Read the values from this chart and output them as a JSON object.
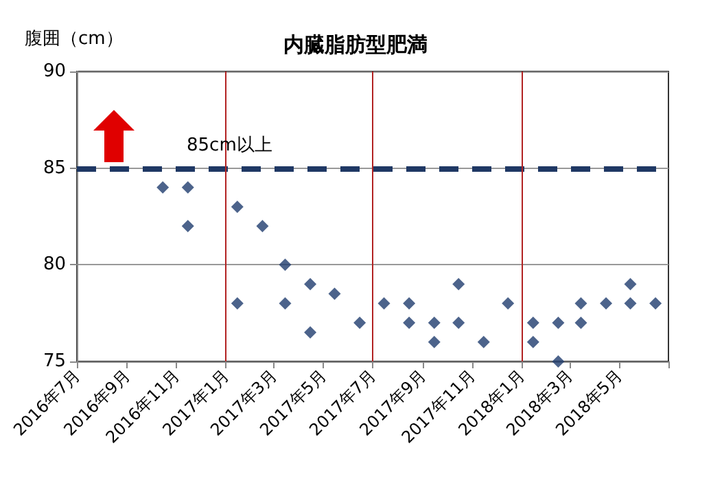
{
  "chart_data": {
    "type": "scatter",
    "title": "内臓脂肪型肥満",
    "ylabel": "腹囲（cm）",
    "x": [
      "2016-10-15",
      "2016-11-15",
      "2016-11-15",
      "2017-01-15",
      "2017-01-15",
      "2017-02-15",
      "2017-03-15",
      "2017-03-15",
      "2017-04-15",
      "2017-04-15",
      "2017-05-15",
      "2017-06-15",
      "2017-07-15",
      "2017-08-15",
      "2017-08-15",
      "2017-09-15",
      "2017-09-15",
      "2017-10-15",
      "2017-10-15",
      "2017-11-15",
      "2017-12-15",
      "2018-01-15",
      "2018-01-15",
      "2018-02-15",
      "2018-02-15",
      "2018-03-15",
      "2018-03-15",
      "2018-04-15",
      "2018-05-15",
      "2018-05-15",
      "2018-06-15"
    ],
    "values": [
      84,
      84,
      82,
      83,
      78,
      82,
      80,
      78,
      79,
      76.5,
      78.5,
      77,
      78,
      78,
      77,
      77,
      76,
      79,
      77,
      76,
      78,
      77,
      76,
      75,
      77,
      78,
      77,
      78,
      79,
      78,
      78
    ],
    "color": "#1f3c6e",
    "marker": "diamond",
    "xlim": [
      "2016-07",
      "2018-07"
    ],
    "xticks": [
      {
        "value": "2016-07",
        "label": "2016年7月"
      },
      {
        "value": "2016-09",
        "label": "2016年9月"
      },
      {
        "value": "2016-11",
        "label": "2016年11月"
      },
      {
        "value": "2017-01",
        "label": "2017年1月"
      },
      {
        "value": "2017-03",
        "label": "2017年3月"
      },
      {
        "value": "2017-05",
        "label": "2017年5月"
      },
      {
        "value": "2017-07",
        "label": "2017年7月"
      },
      {
        "value": "2017-09",
        "label": "2017年9月"
      },
      {
        "value": "2017-11",
        "label": "2017年11月"
      },
      {
        "value": "2018-01",
        "label": "2018年1月"
      },
      {
        "value": "2018-03",
        "label": "2018年3月"
      },
      {
        "value": "2018-05",
        "label": "2018年5月"
      },
      {
        "value": "2018-07",
        "label": null
      }
    ],
    "ylim": [
      75,
      90
    ],
    "yticks": [
      75,
      80,
      85,
      90
    ],
    "grid": "y",
    "ref_lines": [
      {
        "axis": "y",
        "value": 85,
        "label": "85cm以上",
        "color": "#1f3864",
        "line_style": "dashed"
      },
      {
        "axis": "x",
        "value": "2017-01",
        "label": null,
        "color": "#b22222",
        "line_style": "solid"
      },
      {
        "axis": "x",
        "value": "2017-07",
        "label": null,
        "color": "#b22222",
        "line_style": "solid"
      },
      {
        "axis": "x",
        "value": "2018-01",
        "label": null,
        "color": "#b22222",
        "line_style": "solid"
      }
    ]
  }
}
